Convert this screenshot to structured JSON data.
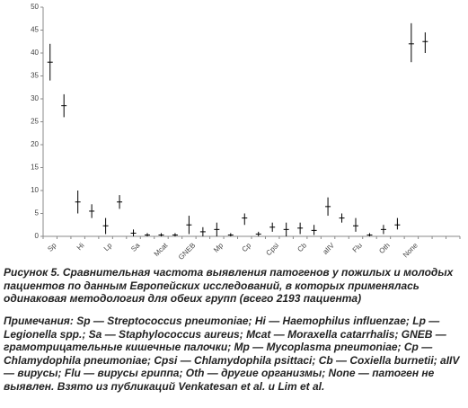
{
  "chart_data": {
    "type": "errorbar",
    "categories": [
      "Sp",
      null,
      "Hi",
      null,
      "Lp",
      null,
      "Sa",
      null,
      "Mcat",
      null,
      "GNEB",
      null,
      "Mp",
      null,
      "Cp",
      null,
      "Cpsi",
      null,
      "Cb",
      null,
      "aIIV",
      null,
      "Flu",
      null,
      "Oth",
      null,
      "None",
      null,
      null,
      null
    ],
    "values": [
      38,
      28.5,
      7.5,
      5.5,
      2.3,
      7.5,
      0.7,
      0.3,
      0.3,
      0.3,
      2.5,
      1,
      1.5,
      0.3,
      4,
      0.5,
      2,
      1.5,
      1.8,
      1.3,
      6.5,
      4,
      2.3,
      0.3,
      1.5,
      2.5,
      42,
      42.5,
      null,
      null
    ],
    "lower": [
      34,
      26,
      5,
      4,
      0.5,
      6,
      0,
      0,
      0,
      0,
      0.5,
      0,
      0,
      0,
      2.5,
      0,
      1,
      0,
      0.5,
      0.3,
      4.5,
      3,
      1,
      0,
      0.5,
      1.5,
      38,
      40,
      null,
      null
    ],
    "upper": [
      42,
      31,
      10,
      7,
      4,
      9,
      1.5,
      0.7,
      0.7,
      0.7,
      4.5,
      2,
      3,
      0.7,
      5,
      1,
      3,
      3,
      3,
      2.5,
      8.5,
      5,
      4,
      0.7,
      2.5,
      4,
      46.5,
      44.5,
      null,
      null
    ],
    "color": "#000000",
    "ylim": [
      0,
      50
    ],
    "yticks": [
      0,
      5,
      10,
      15,
      20,
      25,
      30,
      35,
      40,
      45,
      50
    ]
  },
  "caption": "Рисунок 5. Сравнительная частота выявления патогенов у пожилых и молодых пациентов по данным Европейских исследований, в которых применялась одинаковая методология для обеих групп (всего 2193 пациента)",
  "notes": "Примечания: Sp — Streptococcus pneumoniae; Hi — Haemophilus influenzae; Lp — Legionella spp.; Sa — Staphylococcus aureus; Mcat — Moraxella catarrhalis; GNEB — грамотрицательные кишечные палочки; Mp — Mycoplasma pneumoniae; Cp — Chlamydophila pneumoniae; Cpsi — Chlamydophila psittaci; Cb — Coxiella burnetii; aIIV — вирусы; Flu — вирусы гриппа; Oth — другие организмы; None — патоген не выявлен. Взято из публикаций Venkatesan et al. и Lim et al."
}
